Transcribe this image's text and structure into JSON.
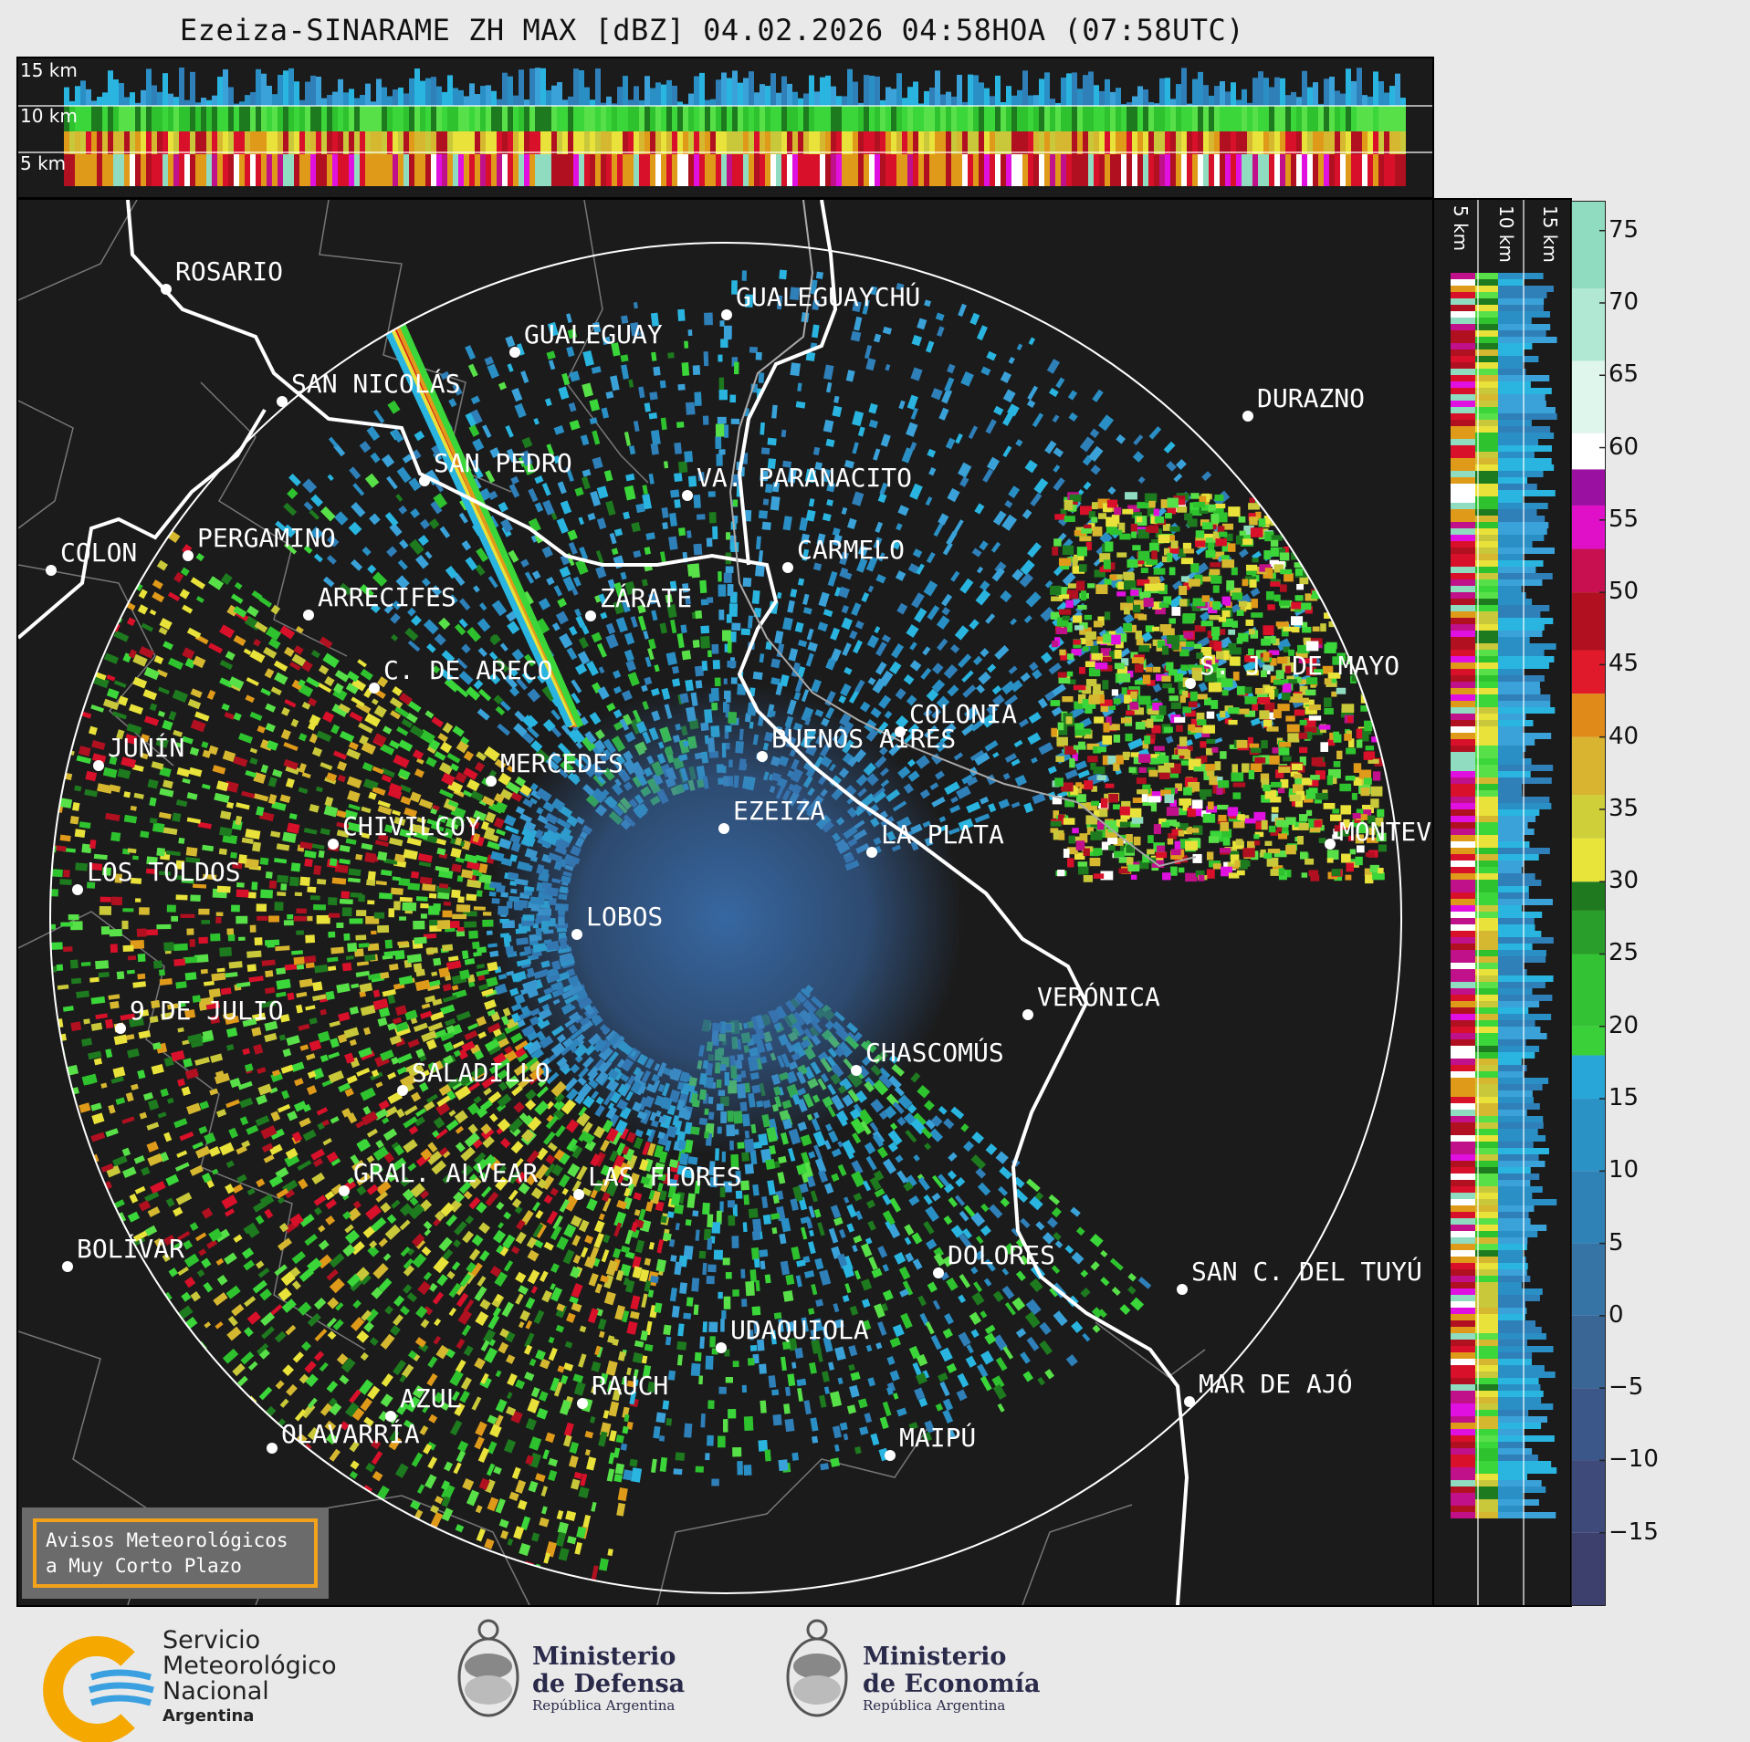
{
  "title": "Ezeiza-SINARAME ZH MAX [dBZ] 04.02.2026 04:58HOA (07:58UTC)",
  "altitude_labels": [
    "15 km",
    "10 km",
    "5 km"
  ],
  "side_altitude_labels": [
    "5 km",
    "10 km",
    "15 km"
  ],
  "colorbar": {
    "ticks": [
      "75",
      "70",
      "65",
      "60",
      "55",
      "50",
      "45",
      "40",
      "35",
      "30",
      "25",
      "20",
      "15",
      "10",
      "5",
      "0",
      "−5",
      "−10",
      "−15"
    ],
    "values": [
      75,
      70,
      65,
      60,
      55,
      50,
      45,
      40,
      35,
      30,
      25,
      20,
      15,
      10,
      5,
      0,
      -5,
      -10,
      -15
    ],
    "range": [
      -20,
      77
    ],
    "colors": {
      "low": "#3a3f6e",
      "blue": "#2a8fc4",
      "cyan": "#29b5e0",
      "green": "#3ad63a",
      "dark_green": "#1e7a1e",
      "yellow": "#e8e23a",
      "orange": "#e09a1a",
      "red": "#d8102a",
      "magenta": "#e010e0",
      "white": "#ffffff",
      "teal": "#8fdcc0"
    }
  },
  "cities": [
    {
      "name": "ROSARIO"
    },
    {
      "name": "GUALEGUAYCHÚ"
    },
    {
      "name": "GUALEGUAY"
    },
    {
      "name": "SAN NICOLÁS"
    },
    {
      "name": "DURAZNO"
    },
    {
      "name": "SAN PEDRO"
    },
    {
      "name": "VA. PARANACITO"
    },
    {
      "name": "COLON"
    },
    {
      "name": "PERGAMINO"
    },
    {
      "name": "CARMELO"
    },
    {
      "name": "ARRECIFES"
    },
    {
      "name": "ZÁRATE"
    },
    {
      "name": "S. J. DE MAYO"
    },
    {
      "name": "C. DE ARECO"
    },
    {
      "name": "COLONIA"
    },
    {
      "name": "JUNÍN"
    },
    {
      "name": "BUENOS AIRES"
    },
    {
      "name": "MERCEDES"
    },
    {
      "name": "EZEIZA"
    },
    {
      "name": "MONTEVIDEO"
    },
    {
      "name": "CHIVILCOY"
    },
    {
      "name": "LA PLATA"
    },
    {
      "name": "LOS TOLDOS"
    },
    {
      "name": "LOBOS"
    },
    {
      "name": "VERÓNICA"
    },
    {
      "name": "9 DE JULIO"
    },
    {
      "name": "CHASCOMÚS"
    },
    {
      "name": "SALADILLO"
    },
    {
      "name": "GRAL. ALVEAR"
    },
    {
      "name": "LAS FLORES"
    },
    {
      "name": "DOLORES"
    },
    {
      "name": "BOLÍVAR"
    },
    {
      "name": "SAN C. DEL TUYÚ"
    },
    {
      "name": "UDAQUIOLA"
    },
    {
      "name": "MAR DE AJÓ"
    },
    {
      "name": "AZUL"
    },
    {
      "name": "RAUCH"
    },
    {
      "name": "OLAVARRÍA"
    },
    {
      "name": "MAIPÚ"
    }
  ],
  "notice": {
    "line1": "Avisos Meteorológicos",
    "line2": "a Muy Corto Plazo"
  },
  "footer": {
    "smn": {
      "line1": "Servicio",
      "line2": "Meteorológico",
      "line3": "Nacional",
      "line4": "Argentina"
    },
    "defensa": {
      "line1": "Ministerio",
      "line2": "de Defensa",
      "line3": "República Argentina"
    },
    "economia": {
      "line1": "Ministerio",
      "line2": "de Economía",
      "line3": "República Argentina"
    }
  }
}
